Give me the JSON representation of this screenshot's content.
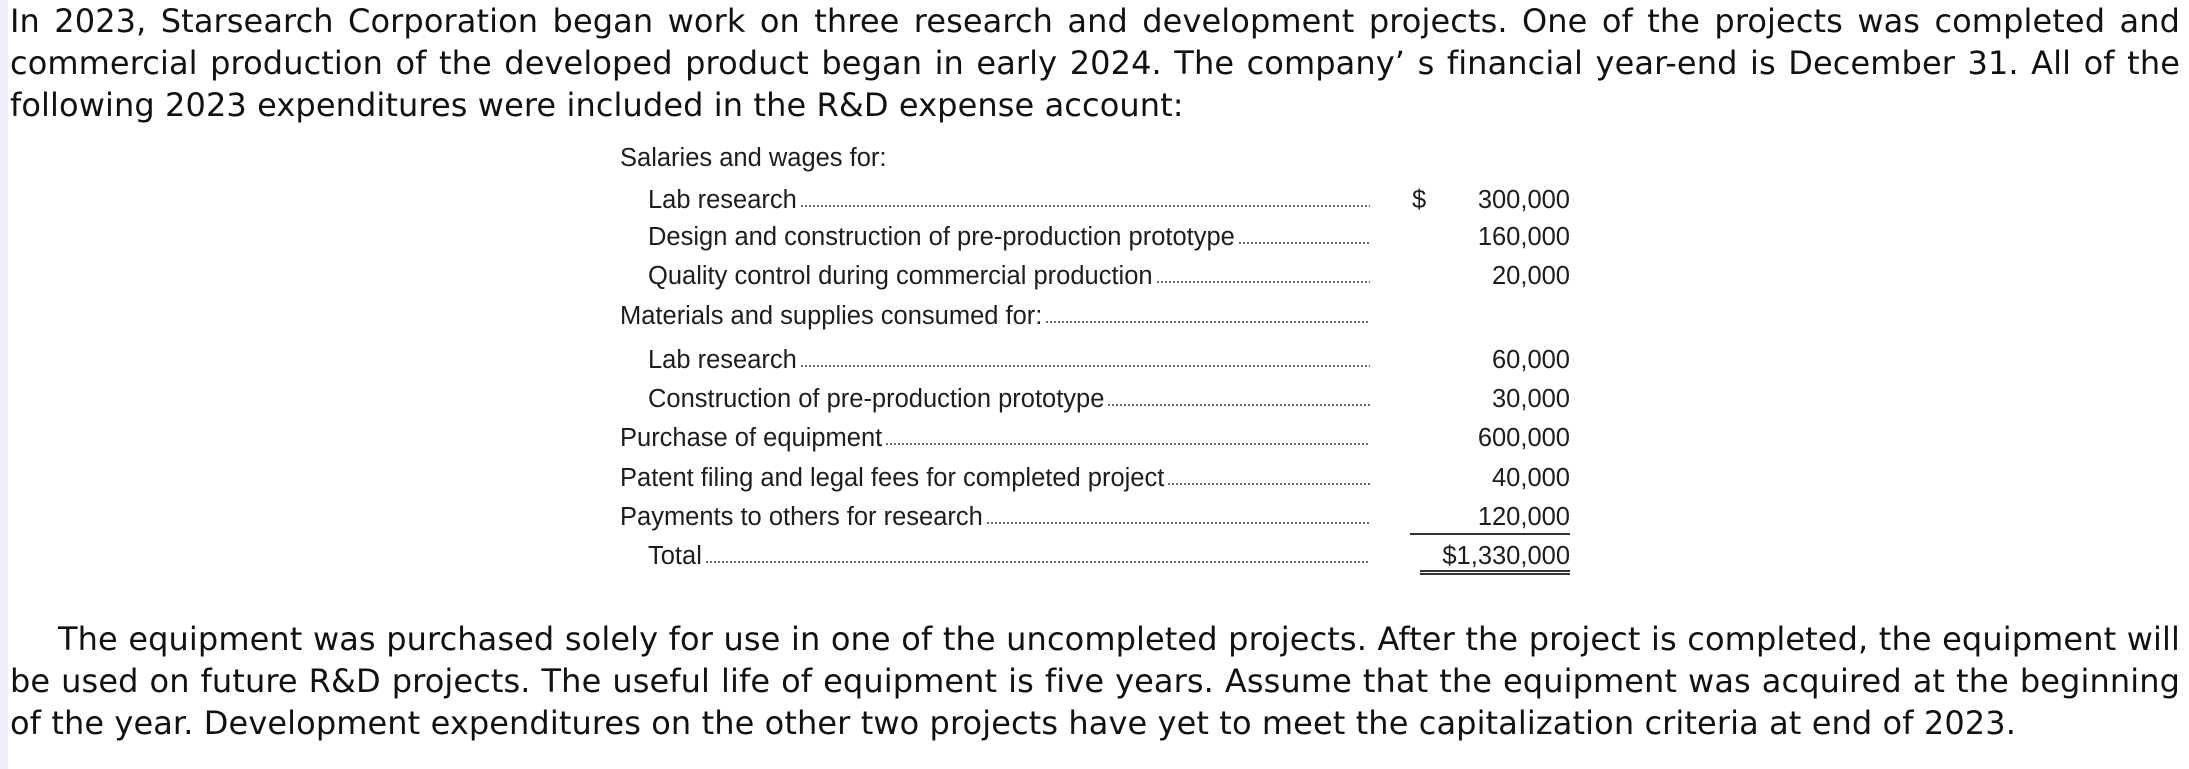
{
  "intro": "In 2023, Starsearch Corporation began work on three research and development projects. One of the projects was completed and commercial production of the developed product began in early 2024. The company’ s financial year-end is December 31. All of the following 2023 expenditures were included in the R&D expense account:",
  "table": {
    "rows": [
      {
        "label": "Salaries and wages for:",
        "dollar": "",
        "amount": ""
      },
      {
        "label": "Lab research",
        "dollar": "$",
        "amount": "300,000"
      },
      {
        "label": "Design and construction of pre-production prototype",
        "dollar": "",
        "amount": "160,000"
      },
      {
        "label": "Quality control during commercial production",
        "dollar": "",
        "amount": "20,000"
      },
      {
        "label": "Materials and supplies consumed for:",
        "dollar": "",
        "amount": ""
      },
      {
        "label": "Lab research",
        "dollar": "",
        "amount": "60,000"
      },
      {
        "label": "Construction of pre-production prototype",
        "dollar": "",
        "amount": "30,000"
      },
      {
        "label": "Purchase of equipment",
        "dollar": "",
        "amount": "600,000"
      },
      {
        "label": "Patent filing and legal fees for completed project",
        "dollar": "",
        "amount": "40,000"
      },
      {
        "label": "Payments to others for research",
        "dollar": "",
        "amount": "120,000"
      },
      {
        "label": "Total",
        "dollar": "",
        "amount": "$1,330,000"
      }
    ]
  },
  "closing": "The equipment was purchased solely for use in one of the uncompleted projects. After the project is completed, the equipment will be used on future R&D projects. The useful life of equipment is five years. Assume that the equipment was acquired at the beginning of the year. Development expenditures on the other two projects have yet to meet the capitalization criteria at end of 2023."
}
